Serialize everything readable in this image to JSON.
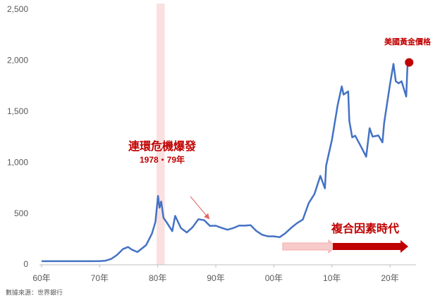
{
  "chart_data": {
    "type": "line",
    "x": [
      1960,
      1965,
      1970,
      1971,
      1972,
      1973,
      1974,
      1974.9,
      1975.5,
      1976.5,
      1977,
      1978,
      1979,
      1979.6,
      1980.05,
      1980.3,
      1980.6,
      1981,
      1981.5,
      1982.5,
      1983,
      1984,
      1985,
      1986,
      1987,
      1988,
      1989,
      1990,
      1991,
      1992,
      1993,
      1994,
      1995,
      1996,
      1997,
      1998,
      1999,
      2000,
      2001,
      2002,
      2003,
      2004,
      2005,
      2006,
      2007,
      2008,
      2008.8,
      2009,
      2010,
      2011,
      2011.7,
      2012,
      2012.8,
      2013,
      2013.5,
      2014,
      2015,
      2015.9,
      2016.5,
      2017,
      2018,
      2018.7,
      2019,
      2020,
      2020.6,
      2021,
      2021.5,
      2022,
      2022.8,
      2023,
      2023.3
    ],
    "series": [
      {
        "name": "美國黃金價格",
        "color": "#4472c4",
        "values": [
          35,
          35,
          36,
          40,
          58,
          97,
          154,
          175,
          150,
          125,
          148,
          193,
          306,
          420,
          675,
          560,
          620,
          460,
          420,
          330,
          480,
          360,
          317,
          368,
          447,
          437,
          381,
          383,
          362,
          344,
          360,
          384,
          384,
          388,
          331,
          294,
          279,
          279,
          271,
          310,
          363,
          409,
          444,
          604,
          695,
          872,
          750,
          972,
          1224,
          1571,
          1750,
          1669,
          1700,
          1411,
          1250,
          1266,
          1160,
          1060,
          1340,
          1257,
          1268,
          1200,
          1392,
          1770,
          1970,
          1800,
          1780,
          1800,
          1650,
          1940,
          1985
        ]
      }
    ],
    "xlim": [
      1960,
      2024
    ],
    "xticks": [
      {
        "value": 1960,
        "label": "60年"
      },
      {
        "value": 1970,
        "label": "70年"
      },
      {
        "value": 1980,
        "label": "80年"
      },
      {
        "value": 1990,
        "label": "90年"
      },
      {
        "value": 2000,
        "label": "00年"
      },
      {
        "value": 2010,
        "label": "10年"
      },
      {
        "value": 2020,
        "label": "20年"
      }
    ],
    "ylim": [
      0,
      2500
    ],
    "yticks": [
      0,
      500,
      {
        "value": 1000,
        "label": "1,000"
      },
      {
        "value": 1500,
        "label": "1,500"
      },
      {
        "value": 2000,
        "label": "2,000"
      },
      {
        "value": 2500,
        "label": "2,500"
      }
    ],
    "highlight": [
      1979.8,
      1981.2
    ],
    "annotations": [
      "連環危機爆發",
      "1978・79年",
      "複合因素時代"
    ],
    "source": "數據來源：世界銀行"
  }
}
